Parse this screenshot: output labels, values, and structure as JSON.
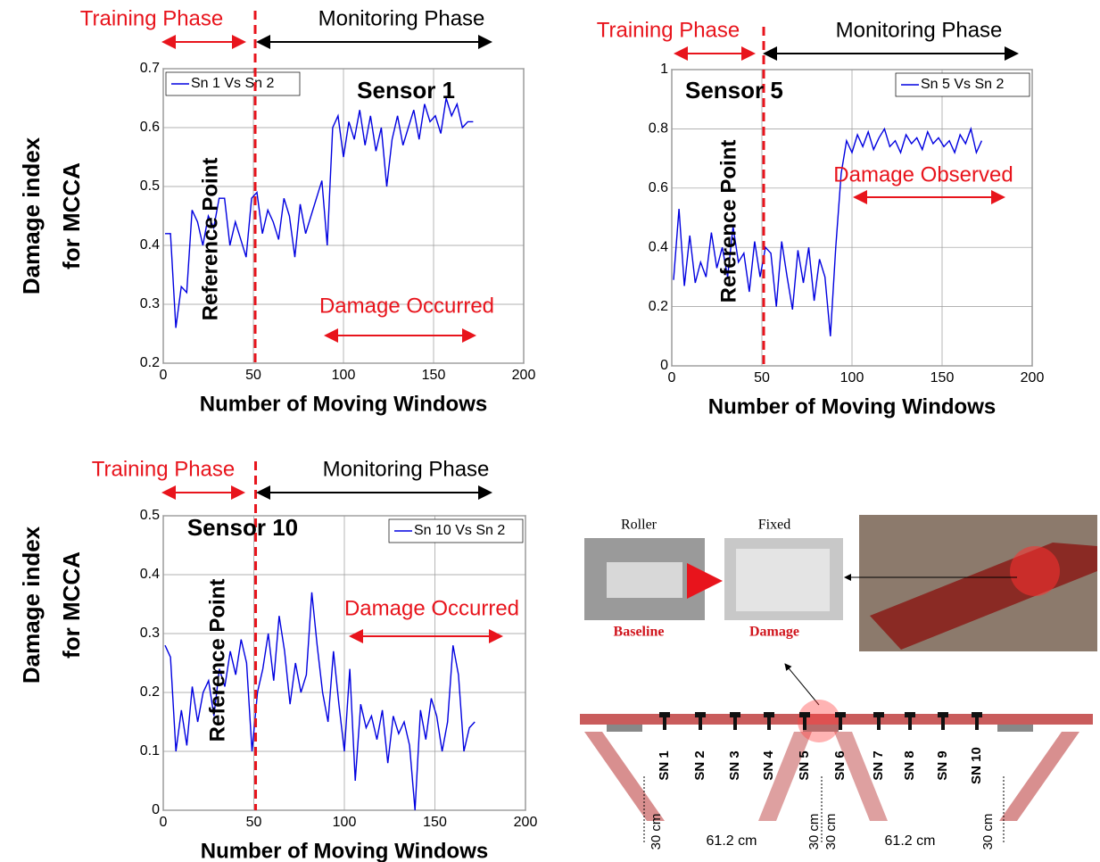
{
  "chart_data": [
    {
      "type": "line",
      "xlabel": "Number of Moving Windows",
      "ylabel": [
        "Damage index",
        "for MCCA"
      ],
      "x": [
        1,
        4,
        7,
        10,
        13,
        16,
        19,
        22,
        25,
        28,
        31,
        34,
        37,
        40,
        43,
        46,
        49,
        52,
        55,
        58,
        61,
        64,
        67,
        70,
        73,
        76,
        79,
        82,
        85,
        88,
        91,
        94,
        97,
        100,
        103,
        106,
        109,
        112,
        115,
        118,
        121,
        124,
        127,
        130,
        133,
        136,
        139,
        142,
        145,
        148,
        151,
        154,
        157,
        160,
        163,
        166,
        169,
        172
      ],
      "series": [
        {
          "name": "Sn 1 Vs Sn 2",
          "color": "#0000e0",
          "values": [
            0.42,
            0.42,
            0.26,
            0.33,
            0.32,
            0.46,
            0.44,
            0.4,
            0.45,
            0.43,
            0.48,
            0.48,
            0.4,
            0.44,
            0.41,
            0.38,
            0.48,
            0.49,
            0.42,
            0.46,
            0.44,
            0.41,
            0.48,
            0.45,
            0.38,
            0.47,
            0.42,
            0.45,
            0.48,
            0.51,
            0.4,
            0.6,
            0.62,
            0.55,
            0.61,
            0.58,
            0.63,
            0.57,
            0.62,
            0.56,
            0.6,
            0.5,
            0.58,
            0.62,
            0.57,
            0.6,
            0.63,
            0.58,
            0.64,
            0.61,
            0.62,
            0.59,
            0.65,
            0.62,
            0.64,
            0.6,
            0.61,
            0.61
          ]
        }
      ],
      "xlim": [
        0,
        200
      ],
      "xticks": [
        0,
        50,
        100,
        150,
        200
      ],
      "ylim": [
        0.2,
        0.7
      ],
      "yticks": [
        0.2,
        0.3,
        0.4,
        0.5,
        0.6,
        0.7
      ],
      "grid": true,
      "legend": "upper left",
      "annotations": {
        "training": "Training Phase",
        "monitoring": "Monitoring Phase",
        "sensor": "Sensor 1",
        "reference": "Reference Point",
        "damage": "Damage Occurred",
        "reference_x": 51
      }
    },
    {
      "type": "line",
      "xlabel": "Number of Moving Windows",
      "x": [
        1,
        4,
        7,
        10,
        13,
        16,
        19,
        22,
        25,
        28,
        31,
        34,
        37,
        40,
        43,
        46,
        49,
        52,
        55,
        58,
        61,
        64,
        67,
        70,
        73,
        76,
        79,
        82,
        85,
        88,
        91,
        94,
        97,
        100,
        103,
        106,
        109,
        112,
        115,
        118,
        121,
        124,
        127,
        130,
        133,
        136,
        139,
        142,
        145,
        148,
        151,
        154,
        157,
        160,
        163,
        166,
        169,
        172
      ],
      "series": [
        {
          "name": "Sn 5 Vs Sn 2",
          "color": "#0000e0",
          "values": [
            0.29,
            0.53,
            0.27,
            0.44,
            0.28,
            0.35,
            0.3,
            0.45,
            0.33,
            0.4,
            0.3,
            0.47,
            0.35,
            0.38,
            0.25,
            0.42,
            0.3,
            0.4,
            0.38,
            0.2,
            0.42,
            0.3,
            0.19,
            0.39,
            0.28,
            0.4,
            0.22,
            0.36,
            0.3,
            0.1,
            0.4,
            0.65,
            0.76,
            0.72,
            0.78,
            0.74,
            0.79,
            0.73,
            0.77,
            0.8,
            0.74,
            0.76,
            0.72,
            0.78,
            0.75,
            0.77,
            0.73,
            0.79,
            0.75,
            0.77,
            0.74,
            0.76,
            0.72,
            0.78,
            0.75,
            0.8,
            0.72,
            0.76
          ]
        }
      ],
      "xlim": [
        0,
        200
      ],
      "xticks": [
        0,
        50,
        100,
        150,
        200
      ],
      "ylim": [
        0,
        1
      ],
      "yticks": [
        0,
        0.2,
        0.4,
        0.6,
        0.8,
        1
      ],
      "grid": true,
      "legend": "upper right",
      "annotations": {
        "training": "Training Phase",
        "monitoring": "Monitoring Phase",
        "sensor": "Sensor 5",
        "reference": "Reference Point",
        "damage": "Damage Observed",
        "reference_x": 51
      }
    },
    {
      "type": "line",
      "xlabel": "Number of Moving Windows",
      "ylabel": [
        "Damage index",
        "for MCCA"
      ],
      "x": [
        1,
        4,
        7,
        10,
        13,
        16,
        19,
        22,
        25,
        28,
        31,
        34,
        37,
        40,
        43,
        46,
        49,
        52,
        55,
        58,
        61,
        64,
        67,
        70,
        73,
        76,
        79,
        82,
        85,
        88,
        91,
        94,
        97,
        100,
        103,
        106,
        109,
        112,
        115,
        118,
        121,
        124,
        127,
        130,
        133,
        136,
        139,
        142,
        145,
        148,
        151,
        154,
        157,
        160,
        163,
        166,
        169,
        172
      ],
      "series": [
        {
          "name": "Sn 10 Vs Sn 2",
          "color": "#0000e0",
          "values": [
            0.28,
            0.26,
            0.1,
            0.17,
            0.11,
            0.21,
            0.15,
            0.2,
            0.22,
            0.16,
            0.24,
            0.21,
            0.27,
            0.23,
            0.29,
            0.25,
            0.1,
            0.2,
            0.24,
            0.3,
            0.22,
            0.33,
            0.27,
            0.18,
            0.25,
            0.2,
            0.23,
            0.37,
            0.28,
            0.2,
            0.15,
            0.27,
            0.18,
            0.1,
            0.24,
            0.05,
            0.18,
            0.14,
            0.16,
            0.12,
            0.17,
            0.08,
            0.16,
            0.13,
            0.15,
            0.11,
            0.0,
            0.17,
            0.12,
            0.19,
            0.16,
            0.1,
            0.15,
            0.28,
            0.23,
            0.1,
            0.14,
            0.15
          ]
        }
      ],
      "xlim": [
        0,
        200
      ],
      "xticks": [
        0,
        50,
        100,
        150,
        200
      ],
      "ylim": [
        0,
        0.5
      ],
      "yticks": [
        0,
        0.1,
        0.2,
        0.3,
        0.4,
        0.5
      ],
      "grid": true,
      "legend": "upper right",
      "annotations": {
        "training": "Training Phase",
        "monitoring": "Monitoring Phase",
        "sensor": "Sensor 10",
        "reference": "Reference Point",
        "damage": "Damage Occurred",
        "reference_x": 51
      }
    }
  ],
  "diagram": {
    "roller": "Roller",
    "fixed": "Fixed",
    "baseline": "Baseline",
    "damage": "Damage",
    "sensors": [
      "SN 1",
      "SN 2",
      "SN 3",
      "SN 4",
      "SN 5",
      "SN 6",
      "SN 7",
      "SN 8",
      "SN 9",
      "SN 10"
    ],
    "end_spacing": "30 cm",
    "spacing": "61.2 cm"
  }
}
